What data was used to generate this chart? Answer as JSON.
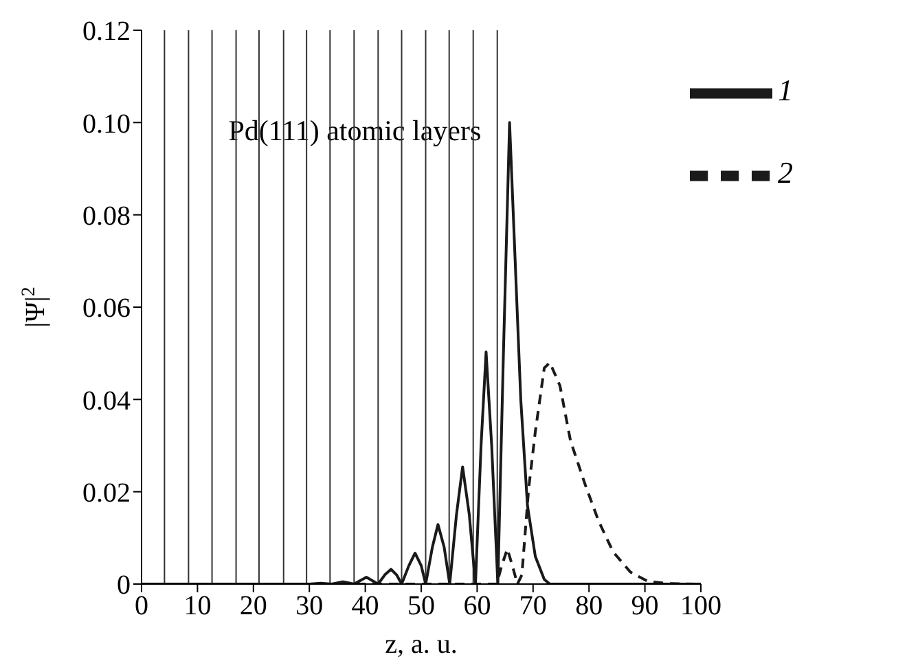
{
  "chart_data": {
    "type": "line",
    "xlabel": "z, a. u.",
    "ylabel": "|Ψ|$^{2}$",
    "xlim": [
      0,
      100
    ],
    "xticks": [
      0,
      10,
      20,
      30,
      40,
      50,
      60,
      70,
      80,
      90,
      100
    ],
    "ylim": [
      0,
      0.12
    ],
    "yticks": [
      0,
      {
        "value": 0.02,
        "label": "0.02"
      },
      {
        "value": 0.04,
        "label": "0.04"
      },
      {
        "value": 0.06,
        "label": "0.06"
      },
      {
        "value": 0.08,
        "label": "0.08"
      },
      {
        "value": 0.1,
        "label": "0.10"
      },
      {
        "value": 0.12,
        "label": "0.12"
      }
    ],
    "grid": false,
    "legend": "top right",
    "marker": "none",
    "annotations": [
      "Pd(111) atomic layers"
    ],
    "ref_lines": [
      {
        "axis": "x",
        "value": 4.1,
        "color": "#333333"
      },
      {
        "axis": "x",
        "value": 8.4,
        "color": "#333333"
      },
      {
        "axis": "x",
        "value": 12.6,
        "color": "#333333"
      },
      {
        "axis": "x",
        "value": 16.9,
        "color": "#333333"
      },
      {
        "axis": "x",
        "value": 21.0,
        "color": "#333333"
      },
      {
        "axis": "x",
        "value": 25.4,
        "color": "#333333"
      },
      {
        "axis": "x",
        "value": 29.5,
        "color": "#333333"
      },
      {
        "axis": "x",
        "value": 33.7,
        "color": "#333333"
      },
      {
        "axis": "x",
        "value": 38.0,
        "color": "#333333"
      },
      {
        "axis": "x",
        "value": 42.3,
        "color": "#333333"
      },
      {
        "axis": "x",
        "value": 46.5,
        "color": "#333333"
      },
      {
        "axis": "x",
        "value": 50.8,
        "color": "#333333"
      },
      {
        "axis": "x",
        "value": 55.0,
        "color": "#333333"
      },
      {
        "axis": "x",
        "value": 59.3,
        "color": "#333333"
      },
      {
        "axis": "x",
        "value": 63.6,
        "color": "#333333"
      }
    ],
    "series": [
      {
        "name": "1",
        "color": "#1a1a1a",
        "line_style": "solid",
        "x": [
          0,
          30,
          32,
          34,
          36,
          38,
          40.2,
          42.3,
          43.5,
          44.6,
          45.6,
          46.5,
          47.8,
          48.9,
          50,
          50.8,
          52,
          53,
          54.1,
          55.1,
          56.3,
          57.4,
          58.6,
          59.7,
          60.7,
          61.6,
          62.6,
          63.7,
          64.7,
          65.8,
          66.8,
          67.8,
          69,
          70.4,
          72,
          73,
          80,
          100
        ],
        "values": [
          0,
          0,
          0.0002,
          0,
          0.0005,
          0,
          0.0015,
          0,
          0.002,
          0.0032,
          0.002,
          0,
          0.004,
          0.0067,
          0.004,
          0,
          0.008,
          0.0129,
          0.008,
          0,
          0.015,
          0.0254,
          0.015,
          0,
          0.03,
          0.0503,
          0.03,
          0,
          0.05,
          0.1,
          0.07,
          0.04,
          0.017,
          0.006,
          0.001,
          0,
          0,
          0
        ]
      },
      {
        "name": "2",
        "color": "#1a1a1a",
        "line_style": "dashed",
        "x": [
          0,
          60,
          63.5,
          64.4,
          65.4,
          66.3,
          67.2,
          68,
          69.2,
          70.4,
          72,
          73,
          74.8,
          76.7,
          79.3,
          81.7,
          84.3,
          87.4,
          90.5,
          94.2,
          100
        ],
        "values": [
          0,
          0,
          0,
          0.004,
          0.0076,
          0.004,
          0,
          0.002,
          0.0205,
          0.033,
          0.0468,
          0.048,
          0.043,
          0.031,
          0.0216,
          0.0137,
          0.007,
          0.0026,
          0.0006,
          0.0001,
          0
        ]
      }
    ]
  }
}
